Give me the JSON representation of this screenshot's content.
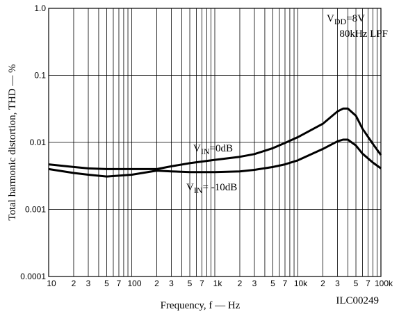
{
  "chart_data": {
    "type": "line",
    "xlabel": "Frequency, f — Hz",
    "ylabel": "Total harmonic distortion, THD — %",
    "x": [
      10,
      20,
      30,
      50,
      100,
      200,
      300,
      500,
      1000,
      2000,
      3000,
      5000,
      7000,
      10000,
      20000,
      30000,
      35000,
      40000,
      50000,
      60000,
      80000,
      100000
    ],
    "series": [
      {
        "color": "#000000",
        "values": [
          0.0047,
          0.0043,
          0.0041,
          0.004,
          0.004,
          0.004,
          0.0044,
          0.0049,
          0.0055,
          0.0061,
          0.0067,
          0.0082,
          0.0098,
          0.012,
          0.019,
          0.029,
          0.032,
          0.032,
          0.025,
          0.016,
          0.0095,
          0.0065
        ]
      },
      {
        "color": "#000000",
        "values": [
          0.004,
          0.0035,
          0.0033,
          0.0031,
          0.0033,
          0.0038,
          0.0037,
          0.0036,
          0.0036,
          0.0037,
          0.0039,
          0.0043,
          0.0047,
          0.0054,
          0.008,
          0.0104,
          0.011,
          0.011,
          0.009,
          0.0068,
          0.005,
          0.0041
        ]
      }
    ],
    "log_x": true,
    "log_y": true,
    "grid": true,
    "xlim": [
      10,
      100000
    ],
    "ylim": [
      0.0001,
      1
    ],
    "xticks": [
      10,
      {
        "value": 20,
        "label": "2"
      },
      {
        "value": 30,
        "label": "3"
      },
      {
        "value": 50,
        "label": "5"
      },
      {
        "value": 70,
        "label": "7"
      },
      100,
      {
        "value": 200,
        "label": "2"
      },
      {
        "value": 300,
        "label": "3"
      },
      {
        "value": 500,
        "label": "5"
      },
      {
        "value": 700,
        "label": "7"
      },
      {
        "value": 1000,
        "label": "1k"
      },
      {
        "value": 2000,
        "label": "2"
      },
      {
        "value": 3000,
        "label": "3"
      },
      {
        "value": 5000,
        "label": "5"
      },
      {
        "value": 7000,
        "label": "7"
      },
      {
        "value": 10000,
        "label": "10k"
      },
      {
        "value": 20000,
        "label": "2"
      },
      {
        "value": 30000,
        "label": "3"
      },
      {
        "value": 50000,
        "label": "5"
      },
      {
        "value": 70000,
        "label": "7"
      },
      {
        "value": 100000,
        "label": "100k"
      }
    ],
    "xminor": [
      40,
      60,
      80,
      90,
      400,
      600,
      800,
      900,
      4000,
      6000,
      8000,
      9000,
      40000,
      60000,
      80000,
      90000
    ],
    "yticks": [
      {
        "value": 1,
        "label": "1.0"
      },
      0.1,
      0.01,
      0.001,
      0.0001
    ],
    "annotations": [
      {
        "base": "V",
        "sub": "DD",
        "rest": "=8V"
      },
      {
        "text": "80kHz LPF"
      },
      {
        "base": "V",
        "sub": "IN",
        "rest": "=0dB"
      },
      {
        "base": "V",
        "sub": "IN",
        "rest": "= -10dB"
      },
      {
        "text": "ILC00249"
      }
    ]
  }
}
